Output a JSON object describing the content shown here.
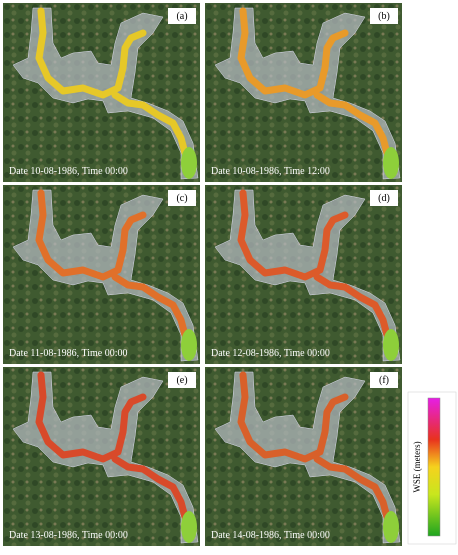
{
  "panels": [
    {
      "label": "(a)",
      "caption": "Date 10-08-1986, Time 00:00"
    },
    {
      "label": "(b)",
      "caption": "Date 10-08-1986, Time 12:00"
    },
    {
      "label": "(c)",
      "caption": "Date 11-08-1986, Time 00:00"
    },
    {
      "label": "(d)",
      "caption": "Date 12-08-1986, Time 00:00"
    },
    {
      "label": "(e)",
      "caption": "Date 13-08-1986, Time 00:00"
    },
    {
      "label": "(f)",
      "caption": "Date 14-08-1986, Time 00:00"
    }
  ],
  "colorbar": {
    "title": "WSE (meters)"
  }
}
